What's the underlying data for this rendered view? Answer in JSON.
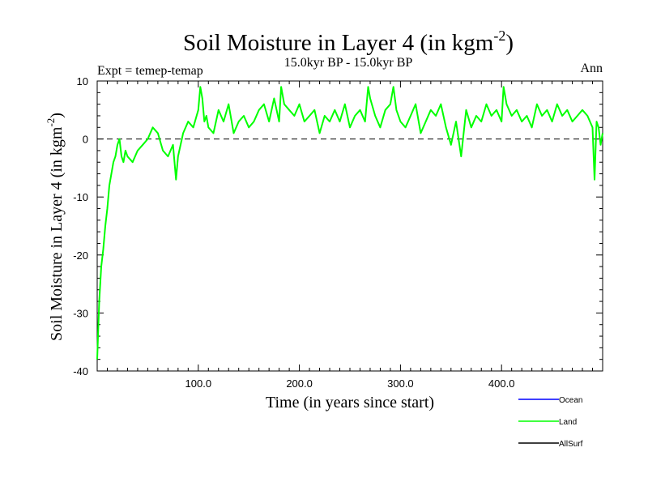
{
  "chart_data": {
    "type": "line",
    "title": "Soil Moisture in Layer 4 (in kgm",
    "title_sup": "-2",
    "title_close": ")",
    "subtitle": "15.0kyr BP - 15.0kyr BP",
    "left_label": "Expt = temep-temap",
    "right_label": "Ann",
    "xlabel": "Time (in years since start)",
    "ylabel": "Soil Moisture in Layer 4 (in kgm",
    "ylabel_sup": "-2",
    "ylabel_close": ")",
    "xlim": [
      0,
      500
    ],
    "ylim": [
      -40,
      10
    ],
    "x_ticks": [
      100,
      200,
      300,
      400
    ],
    "x_tick_labels": [
      "100.0",
      "200.0",
      "300.0",
      "400.0"
    ],
    "y_ticks": [
      -40,
      -30,
      -20,
      -10,
      0,
      10
    ],
    "y_tick_labels": [
      "-40",
      "-30",
      "-20",
      "-10",
      "0",
      "10"
    ],
    "zero_line": 0,
    "legend": [
      {
        "name": "Ocean",
        "color": "#0000ff"
      },
      {
        "name": "Land",
        "color": "#00ff00"
      },
      {
        "name": "AllSurf",
        "color": "#000000"
      }
    ],
    "series": [
      {
        "name": "Land",
        "color": "#00ff00",
        "x": [
          0,
          2,
          4,
          6,
          8,
          10,
          12,
          14,
          16,
          18,
          20,
          22,
          24,
          26,
          28,
          30,
          35,
          40,
          45,
          50,
          55,
          60,
          65,
          70,
          75,
          78,
          80,
          85,
          90,
          95,
          100,
          102,
          104,
          106,
          108,
          110,
          115,
          120,
          125,
          130,
          135,
          140,
          145,
          150,
          155,
          160,
          165,
          170,
          175,
          180,
          182,
          185,
          190,
          195,
          200,
          205,
          210,
          215,
          220,
          225,
          230,
          235,
          240,
          245,
          250,
          255,
          260,
          265,
          268,
          270,
          275,
          280,
          285,
          290,
          293,
          296,
          300,
          305,
          310,
          315,
          320,
          325,
          330,
          335,
          340,
          345,
          350,
          355,
          360,
          365,
          370,
          375,
          380,
          385,
          390,
          395,
          400,
          402,
          405,
          410,
          415,
          420,
          425,
          430,
          435,
          440,
          445,
          450,
          455,
          460,
          465,
          470,
          475,
          480,
          485,
          490,
          492,
          494,
          496,
          498,
          500
        ],
        "values": [
          -38,
          -28,
          -22,
          -19,
          -15,
          -12,
          -8,
          -6,
          -4,
          -3,
          -1,
          0,
          -3,
          -4,
          -2,
          -3,
          -4,
          -2,
          -1,
          0,
          2,
          1,
          -2,
          -3,
          -1,
          -7,
          -3,
          1,
          3,
          2,
          5,
          9,
          7,
          3,
          4,
          2,
          1,
          5,
          3,
          6,
          1,
          3,
          4,
          2,
          3,
          5,
          6,
          3,
          7,
          3,
          9,
          6,
          5,
          4,
          6,
          3,
          4,
          5,
          1,
          4,
          3,
          5,
          3,
          6,
          2,
          4,
          5,
          3,
          9,
          7,
          4,
          2,
          5,
          6,
          9,
          5,
          3,
          2,
          4,
          6,
          1,
          3,
          5,
          4,
          6,
          2,
          -1,
          3,
          -3,
          5,
          2,
          4,
          3,
          6,
          4,
          5,
          3,
          9,
          6,
          4,
          5,
          3,
          4,
          2,
          6,
          4,
          5,
          3,
          6,
          4,
          5,
          3,
          4,
          5,
          4,
          2,
          -7,
          3,
          2,
          -1,
          1
        ]
      }
    ]
  }
}
